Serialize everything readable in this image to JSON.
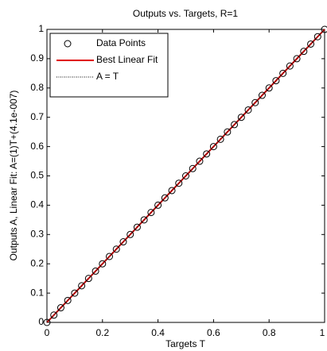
{
  "chart_data": {
    "type": "scatter",
    "title": "Outputs vs. Targets, R=1",
    "xlabel": "Targets T",
    "ylabel": "Outputs A,  Linear Fit: A=(1)T+(4.1e-007)",
    "xlim": [
      0,
      1
    ],
    "ylim": [
      0,
      1
    ],
    "xticks": [
      0,
      0.2,
      0.4,
      0.6,
      0.8,
      1
    ],
    "yticks": [
      0,
      0.1,
      0.2,
      0.3,
      0.4,
      0.5,
      0.6,
      0.7,
      0.8,
      0.9,
      1
    ],
    "grid": false,
    "legend": "upper left",
    "series": [
      {
        "name": "Data Points",
        "color": "#000000",
        "style": "marker",
        "x": [
          0,
          0.025,
          0.05,
          0.075,
          0.1,
          0.125,
          0.15,
          0.175,
          0.2,
          0.225,
          0.25,
          0.275,
          0.3,
          0.325,
          0.35,
          0.375,
          0.4,
          0.425,
          0.45,
          0.475,
          0.5,
          0.525,
          0.55,
          0.575,
          0.6,
          0.625,
          0.65,
          0.675,
          0.7,
          0.725,
          0.75,
          0.775,
          0.8,
          0.825,
          0.85,
          0.875,
          0.9,
          0.925,
          0.95,
          0.975,
          1
        ],
        "values": [
          0,
          0.025,
          0.05,
          0.075,
          0.1,
          0.125,
          0.15,
          0.175,
          0.2,
          0.225,
          0.25,
          0.275,
          0.3,
          0.325,
          0.35,
          0.375,
          0.4,
          0.425,
          0.45,
          0.475,
          0.5,
          0.525,
          0.55,
          0.575,
          0.6,
          0.625,
          0.65,
          0.675,
          0.7,
          0.725,
          0.75,
          0.775,
          0.8,
          0.825,
          0.85,
          0.875,
          0.9,
          0.925,
          0.95,
          0.975,
          1
        ]
      },
      {
        "name": "Best Linear Fit",
        "color": "#e00000",
        "style": "solid",
        "x": [
          0,
          1
        ],
        "values": [
          0,
          1
        ]
      },
      {
        "name": "A = T",
        "color": "#000000",
        "style": "dotted",
        "x": [
          0,
          1
        ],
        "values": [
          0,
          1
        ]
      }
    ]
  }
}
